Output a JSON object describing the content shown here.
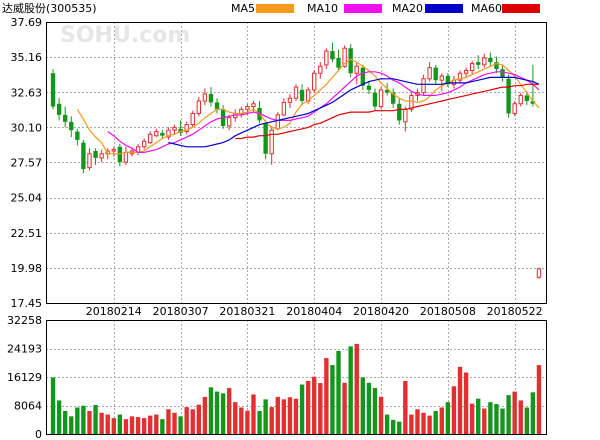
{
  "header": {
    "title": "达威股份",
    "code": "(300535)",
    "watermark": "SOHU.com"
  },
  "legend": [
    {
      "name": "MA5",
      "color": "#f59a1c"
    },
    {
      "name": "MA10",
      "color": "#ee10ee"
    },
    {
      "name": "MA20",
      "color": "#0000c8"
    },
    {
      "name": "MA60",
      "color": "#dd0000"
    }
  ],
  "colors": {
    "up": "#e03030",
    "down": "#14961c",
    "grid": "#aaaaaa",
    "border": "#000000"
  },
  "chart_data": [
    {
      "type": "candlestick",
      "panel": "price",
      "y_ticks": [
        37.69,
        35.16,
        32.63,
        30.1,
        27.57,
        25.04,
        22.51,
        19.98,
        17.45
      ],
      "ylim": [
        17.45,
        37.69
      ],
      "x_ticks": [
        "20180214",
        "20180307",
        "20180321",
        "20180404",
        "20180420",
        "20180508",
        "20180522"
      ],
      "x_tick_index": [
        10,
        21,
        32,
        43,
        54,
        65,
        76
      ],
      "candles_ohlc": [
        [
          34.0,
          34.3,
          31.4,
          31.6
        ],
        [
          31.8,
          32.2,
          30.6,
          31.0
        ],
        [
          31.0,
          31.6,
          30.1,
          30.5
        ],
        [
          30.5,
          30.9,
          29.4,
          29.9
        ],
        [
          29.8,
          30.0,
          28.8,
          29.2
        ],
        [
          29.0,
          29.2,
          26.8,
          27.1
        ],
        [
          27.2,
          28.6,
          27.0,
          28.2
        ],
        [
          28.4,
          28.6,
          27.4,
          27.9
        ],
        [
          27.9,
          28.5,
          27.6,
          28.2
        ],
        [
          28.2,
          28.6,
          27.8,
          28.4
        ],
        [
          28.4,
          28.7,
          28.0,
          28.5
        ],
        [
          28.7,
          28.9,
          27.3,
          27.6
        ],
        [
          27.6,
          28.7,
          27.4,
          28.3
        ],
        [
          28.2,
          28.6,
          28.0,
          28.4
        ],
        [
          28.3,
          28.9,
          28.1,
          28.7
        ],
        [
          28.7,
          29.3,
          28.5,
          29.1
        ],
        [
          29.0,
          29.8,
          28.9,
          29.6
        ],
        [
          29.5,
          30.0,
          29.4,
          29.8
        ],
        [
          29.7,
          29.9,
          29.3,
          29.5
        ],
        [
          29.4,
          30.1,
          29.2,
          29.9
        ],
        [
          29.9,
          30.3,
          29.6,
          30.1
        ],
        [
          30.0,
          30.6,
          29.5,
          29.7
        ],
        [
          29.8,
          30.5,
          29.6,
          30.3
        ],
        [
          30.3,
          31.3,
          30.1,
          31.1
        ],
        [
          31.1,
          32.3,
          30.9,
          32.0
        ],
        [
          32.0,
          32.9,
          31.7,
          32.5
        ],
        [
          32.5,
          33.0,
          31.6,
          31.9
        ],
        [
          31.9,
          32.2,
          31.1,
          31.4
        ],
        [
          31.4,
          31.7,
          30.0,
          30.2
        ],
        [
          30.2,
          31.0,
          29.9,
          30.8
        ],
        [
          30.8,
          31.4,
          30.5,
          31.1
        ],
        [
          31.1,
          31.6,
          30.8,
          31.4
        ],
        [
          31.4,
          31.8,
          31.0,
          31.6
        ],
        [
          31.6,
          32.0,
          31.2,
          31.8
        ],
        [
          31.5,
          32.0,
          30.4,
          30.6
        ],
        [
          30.4,
          30.6,
          27.8,
          28.2
        ],
        [
          28.2,
          30.2,
          27.4,
          29.9
        ],
        [
          30.0,
          31.2,
          29.9,
          31.0
        ],
        [
          31.0,
          32.2,
          30.9,
          31.9
        ],
        [
          31.9,
          32.5,
          31.5,
          32.2
        ],
        [
          32.2,
          33.2,
          32.0,
          33.0
        ],
        [
          32.8,
          33.2,
          31.7,
          32.0
        ],
        [
          32.0,
          33.0,
          31.8,
          32.8
        ],
        [
          32.8,
          34.2,
          32.6,
          34.0
        ],
        [
          34.0,
          34.8,
          33.6,
          34.5
        ],
        [
          34.6,
          35.8,
          34.3,
          35.6
        ],
        [
          35.6,
          36.2,
          34.8,
          35.0
        ],
        [
          35.1,
          35.7,
          34.2,
          34.4
        ],
        [
          34.5,
          36.0,
          34.4,
          35.8
        ],
        [
          35.8,
          36.1,
          33.7,
          34.0
        ],
        [
          34.0,
          34.8,
          33.2,
          34.5
        ],
        [
          34.4,
          34.6,
          32.8,
          33.1
        ],
        [
          33.1,
          33.4,
          32.5,
          32.8
        ],
        [
          32.6,
          32.9,
          31.3,
          31.6
        ],
        [
          31.6,
          33.0,
          31.4,
          32.8
        ],
        [
          32.8,
          33.3,
          32.4,
          32.6
        ],
        [
          32.6,
          32.9,
          31.5,
          31.8
        ],
        [
          31.8,
          32.2,
          30.3,
          30.6
        ],
        [
          30.5,
          31.6,
          29.8,
          31.4
        ],
        [
          31.4,
          32.6,
          31.2,
          32.4
        ],
        [
          32.4,
          32.9,
          32.0,
          32.6
        ],
        [
          32.6,
          33.9,
          32.4,
          33.6
        ],
        [
          33.6,
          34.8,
          33.4,
          34.4
        ],
        [
          34.4,
          34.6,
          33.2,
          33.5
        ],
        [
          33.5,
          34.0,
          32.7,
          33.8
        ],
        [
          33.8,
          34.0,
          33.0,
          33.2
        ],
        [
          33.2,
          33.8,
          32.9,
          33.5
        ],
        [
          33.5,
          34.2,
          33.3,
          34.0
        ],
        [
          34.0,
          34.4,
          33.7,
          34.2
        ],
        [
          34.2,
          34.9,
          33.9,
          34.7
        ],
        [
          34.8,
          35.3,
          34.3,
          34.6
        ],
        [
          34.6,
          35.4,
          34.4,
          35.1
        ],
        [
          35.1,
          35.5,
          34.5,
          34.8
        ],
        [
          34.8,
          35.2,
          34.0,
          34.3
        ],
        [
          34.3,
          34.6,
          33.4,
          33.7
        ],
        [
          33.6,
          33.9,
          30.8,
          31.1
        ],
        [
          31.1,
          32.0,
          30.9,
          31.8
        ],
        [
          31.8,
          32.6,
          31.6,
          32.4
        ],
        [
          32.4,
          32.7,
          31.7,
          32.0
        ],
        [
          32.0,
          34.6,
          31.6,
          31.8
        ],
        [
          19.3,
          20.0,
          19.2,
          19.9
        ]
      ],
      "ma_series": [
        {
          "name": "MA5",
          "values": [
            null,
            null,
            null,
            null,
            31.4,
            30.7,
            29.9,
            29.4,
            29.0,
            28.2,
            28.2,
            28.2,
            28.3,
            28.3,
            28.3,
            28.4,
            28.7,
            29.0,
            29.3,
            29.5,
            29.6,
            29.8,
            29.9,
            30.1,
            30.4,
            30.8,
            31.1,
            31.4,
            31.4,
            31.2,
            31.1,
            31.1,
            31.2,
            31.4,
            31.1,
            30.5,
            30.1,
            30.0,
            30.1,
            30.4,
            31.2,
            31.8,
            32.0,
            32.4,
            32.8,
            33.2,
            33.7,
            34.2,
            34.7,
            35.0,
            34.8,
            34.5,
            34.2,
            33.8,
            33.3,
            32.9,
            32.5,
            32.2,
            32.0,
            32.0,
            31.9,
            32.0,
            32.3,
            32.8,
            33.1,
            33.3,
            33.5,
            33.6,
            33.7,
            33.9,
            34.1,
            34.3,
            34.5,
            34.7,
            34.6,
            34.2,
            33.8,
            33.2,
            32.6,
            32.0,
            31.5
          ]
        },
        {
          "name": "MA10",
          "values": [
            null,
            null,
            null,
            null,
            null,
            null,
            null,
            null,
            null,
            29.8,
            29.5,
            29.1,
            28.8,
            28.6,
            28.3,
            28.3,
            28.4,
            28.5,
            28.7,
            28.9,
            29.0,
            29.2,
            29.4,
            29.6,
            29.9,
            30.2,
            30.5,
            30.7,
            30.8,
            30.9,
            31.0,
            31.0,
            31.1,
            31.2,
            31.1,
            30.9,
            30.7,
            30.6,
            30.6,
            30.6,
            30.7,
            30.8,
            30.9,
            31.2,
            31.5,
            31.8,
            32.2,
            32.6,
            33.0,
            33.4,
            33.8,
            34.0,
            34.1,
            34.1,
            34.0,
            33.8,
            33.5,
            33.3,
            33.0,
            32.7,
            32.5,
            32.4,
            32.4,
            32.4,
            32.5,
            32.6,
            32.8,
            33.0,
            33.3,
            33.5,
            33.7,
            33.9,
            34.0,
            34.1,
            34.1,
            34.0,
            33.9,
            33.7,
            33.5,
            33.2,
            32.8
          ]
        },
        {
          "name": "MA20",
          "values": [
            null,
            null,
            null,
            null,
            null,
            null,
            null,
            null,
            null,
            null,
            null,
            null,
            null,
            null,
            null,
            null,
            null,
            null,
            null,
            29.0,
            28.9,
            28.8,
            28.7,
            28.7,
            28.7,
            28.7,
            28.8,
            28.9,
            29.0,
            29.2,
            29.5,
            29.7,
            29.9,
            30.1,
            30.3,
            30.4,
            30.5,
            30.6,
            30.7,
            30.8,
            30.9,
            31.0,
            31.1,
            31.3,
            31.5,
            31.7,
            31.9,
            32.2,
            32.5,
            32.8,
            33.0,
            33.2,
            33.4,
            33.5,
            33.6,
            33.6,
            33.6,
            33.5,
            33.4,
            33.3,
            33.2,
            33.2,
            33.2,
            33.2,
            33.2,
            33.3,
            33.3,
            33.3,
            33.3,
            33.4,
            33.5,
            33.6,
            33.7,
            33.7,
            33.7,
            33.7,
            33.7,
            33.6,
            33.5,
            33.4,
            33.2
          ]
        },
        {
          "name": "MA60",
          "values": [
            null,
            null,
            null,
            null,
            null,
            null,
            null,
            null,
            null,
            null,
            null,
            null,
            null,
            null,
            null,
            null,
            null,
            null,
            null,
            null,
            null,
            null,
            null,
            null,
            null,
            null,
            null,
            null,
            null,
            null,
            29.3,
            29.3,
            29.4,
            29.4,
            29.5,
            29.5,
            29.6,
            29.6,
            29.7,
            29.8,
            29.9,
            30.0,
            30.1,
            30.3,
            30.4,
            30.6,
            30.8,
            31.0,
            31.1,
            31.2,
            31.2,
            31.2,
            31.2,
            31.3,
            31.3,
            31.3,
            31.3,
            31.4,
            31.4,
            31.5,
            31.6,
            31.7,
            31.8,
            31.9,
            32.0,
            32.1,
            32.2,
            32.3,
            32.4,
            32.5,
            32.6,
            32.7,
            32.8,
            32.9,
            33.0,
            33.0,
            33.1,
            33.1,
            33.2,
            33.2,
            33.2
          ]
        }
      ]
    },
    {
      "type": "bar",
      "panel": "volume",
      "y_ticks": [
        32258,
        24193,
        16129,
        8064,
        0
      ],
      "ylim": [
        0,
        32258
      ],
      "values": [
        16000,
        9500,
        6500,
        5000,
        7500,
        8000,
        6500,
        8200,
        6000,
        5500,
        4500,
        5500,
        4200,
        5000,
        4800,
        4500,
        5200,
        5500,
        4200,
        7000,
        6000,
        5000,
        7600,
        7000,
        8300,
        10500,
        13200,
        12000,
        11500,
        13000,
        9000,
        7500,
        6600,
        11200,
        6500,
        9800,
        7600,
        10500,
        9800,
        10400,
        10000,
        14000,
        15000,
        16200,
        14400,
        21500,
        19500,
        23500,
        14500,
        24800,
        25500,
        16000,
        14500,
        13000,
        10500,
        5500,
        4000,
        3500,
        15000,
        5500,
        7000,
        6000,
        5200,
        6500,
        7500,
        9000,
        13500,
        19000,
        17400,
        8600,
        10000,
        7200,
        9000,
        8500,
        7200,
        11000,
        12000,
        9500,
        7500,
        11800,
        19500
      ]
    }
  ]
}
